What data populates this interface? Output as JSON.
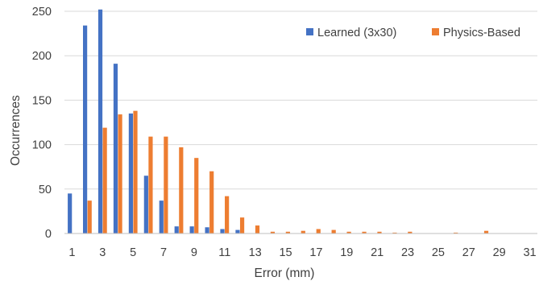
{
  "chart_data": {
    "type": "bar",
    "xlabel": "Error (mm)",
    "ylabel": "Occurrences",
    "ylim": [
      0,
      250
    ],
    "yticks": [
      0,
      50,
      100,
      150,
      200,
      250
    ],
    "grid": true,
    "legend_position": "top-right",
    "categories": [
      1,
      2,
      3,
      4,
      5,
      6,
      7,
      8,
      9,
      10,
      11,
      12,
      13,
      14,
      15,
      16,
      17,
      18,
      19,
      20,
      21,
      22,
      23,
      24,
      25,
      26,
      27,
      28,
      29,
      30,
      31
    ],
    "xtick_labels": [
      "1",
      "3",
      "5",
      "7",
      "9",
      "11",
      "13",
      "15",
      "17",
      "19",
      "21",
      "23",
      "25",
      "27",
      "29",
      "31"
    ],
    "series": [
      {
        "name": "Learned (3x30)",
        "color": "#4472C4",
        "values": [
          45,
          234,
          252,
          191,
          135,
          65,
          37,
          8,
          8,
          7,
          5,
          4,
          0,
          0,
          0,
          0,
          0,
          0,
          0,
          0,
          0,
          0,
          0,
          0,
          0,
          0,
          0,
          0,
          0,
          0,
          0
        ]
      },
      {
        "name": "Physics-Based",
        "color": "#ED7D31",
        "values": [
          0,
          37,
          119,
          134,
          138,
          109,
          109,
          97,
          85,
          70,
          42,
          18,
          9,
          2,
          2,
          3,
          5,
          4,
          2,
          2,
          2,
          1,
          2,
          0,
          0,
          1,
          0,
          3,
          0,
          0,
          0
        ]
      }
    ]
  }
}
